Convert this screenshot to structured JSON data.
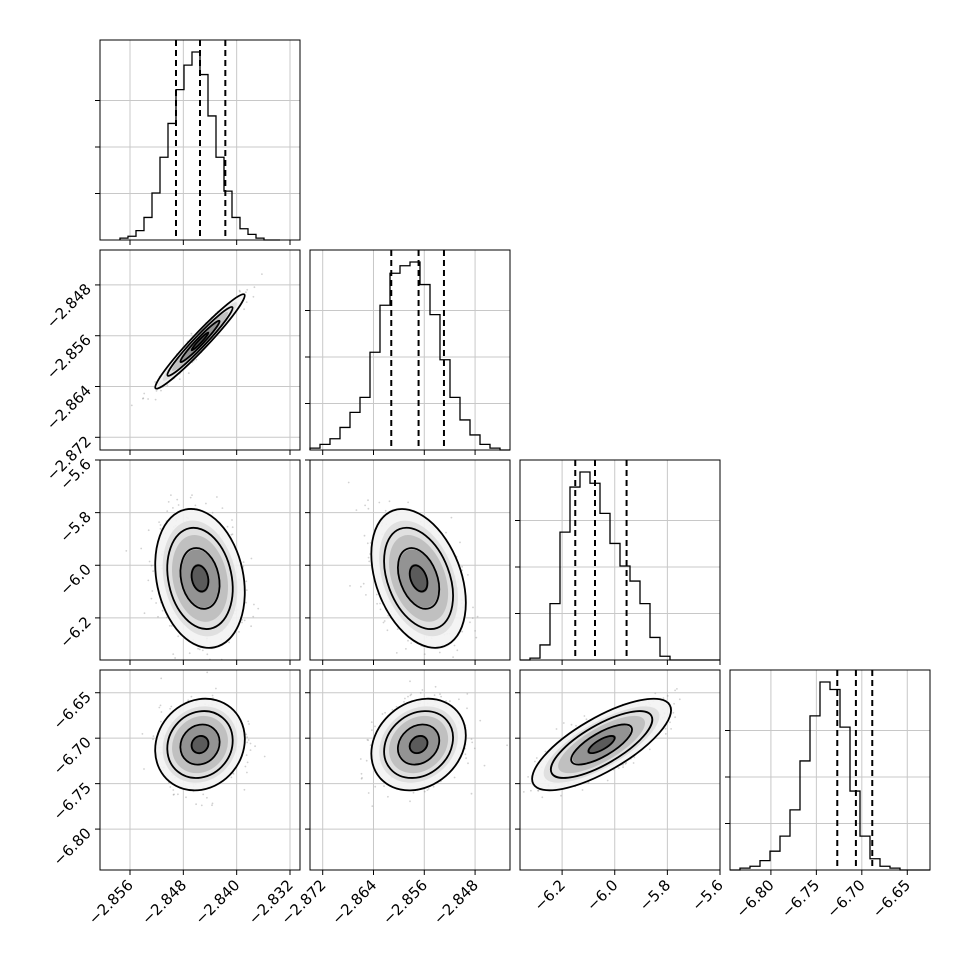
{
  "chart_data": {
    "type": "corner",
    "title": "",
    "n_params": 4,
    "grid": true,
    "quantiles": [
      0.16,
      0.5,
      0.84
    ],
    "ranges": [
      [
        -2.8605,
        -2.8305
      ],
      [
        -2.874,
        -2.8425
      ],
      [
        -6.36,
        -5.6
      ],
      [
        -6.845,
        -6.625
      ]
    ],
    "ticks": [
      [
        "−2.856",
        "−2.848",
        "−2.840",
        "−2.832"
      ],
      [
        "−2.872",
        "−2.864",
        "−2.856",
        "−2.848"
      ],
      [
        "−6.2",
        "−6.0",
        "−5.8",
        "−5.6"
      ],
      [
        "−6.80",
        "−6.75",
        "−6.70",
        "−6.65"
      ]
    ],
    "tick_values": [
      [
        -2.856,
        -2.848,
        -2.84,
        -2.832
      ],
      [
        -2.872,
        -2.864,
        -2.856,
        -2.848
      ],
      [
        -6.2,
        -6.0,
        -5.8,
        -5.6
      ],
      [
        -6.8,
        -6.75,
        -6.7,
        -6.65
      ]
    ],
    "marginals": [
      {
        "param": 0,
        "quantile_values": [
          -2.8491,
          -2.8455,
          -2.8417
        ],
        "bins_range": [
          -2.8575,
          -2.8335
        ],
        "counts": [
          1,
          2,
          5,
          12,
          25,
          44,
          62,
          80,
          93,
          100,
          88,
          66,
          44,
          26,
          12,
          6,
          3,
          1,
          0,
          0
        ]
      },
      {
        "param": 1,
        "quantile_values": [
          -2.8612,
          -2.8569,
          -2.8529
        ],
        "bins_range": [
          -2.874,
          -2.8425
        ],
        "counts": [
          1,
          3,
          6,
          12,
          20,
          28,
          52,
          77,
          94,
          98,
          100,
          88,
          72,
          48,
          28,
          16,
          8,
          3,
          1,
          0
        ]
      },
      {
        "param": 2,
        "quantile_values": [
          -6.15,
          -6.075,
          -5.955
        ],
        "bins_range": [
          -6.36,
          -5.6
        ],
        "counts": [
          0,
          1,
          8,
          30,
          68,
          92,
          100,
          94,
          78,
          62,
          50,
          42,
          30,
          12,
          2,
          0,
          0,
          0,
          0,
          0
        ]
      },
      {
        "param": 3,
        "quantile_values": [
          -6.727,
          -6.7065,
          -6.6885
        ],
        "bins_range": [
          -6.845,
          -6.625
        ],
        "counts": [
          0,
          1,
          2,
          5,
          10,
          18,
          32,
          58,
          82,
          100,
          96,
          76,
          42,
          18,
          6,
          2,
          1,
          0,
          0,
          0
        ]
      }
    ],
    "pairs": [
      {
        "x_param": 0,
        "y_param": 1,
        "mean": [
          -2.8455,
          -2.8569
        ],
        "sd": [
          0.0028,
          0.0031
        ],
        "corr": 0.97
      },
      {
        "x_param": 0,
        "y_param": 2,
        "mean": [
          -2.8455,
          -6.05
        ],
        "sd": [
          0.0028,
          0.11
        ],
        "corr": -0.2
      },
      {
        "x_param": 1,
        "y_param": 2,
        "mean": [
          -2.8569,
          -6.05
        ],
        "sd": [
          0.0031,
          0.11
        ],
        "corr": -0.35
      },
      {
        "x_param": 0,
        "y_param": 3,
        "mean": [
          -2.8455,
          -6.707
        ],
        "sd": [
          0.0028,
          0.021
        ],
        "corr": 0.12
      },
      {
        "x_param": 1,
        "y_param": 3,
        "mean": [
          -2.8569,
          -6.707
        ],
        "sd": [
          0.0031,
          0.021
        ],
        "corr": 0.2
      },
      {
        "x_param": 2,
        "y_param": 3,
        "mean": [
          -6.05,
          -6.707
        ],
        "sd": [
          0.11,
          0.021
        ],
        "corr": 0.75
      }
    ]
  }
}
